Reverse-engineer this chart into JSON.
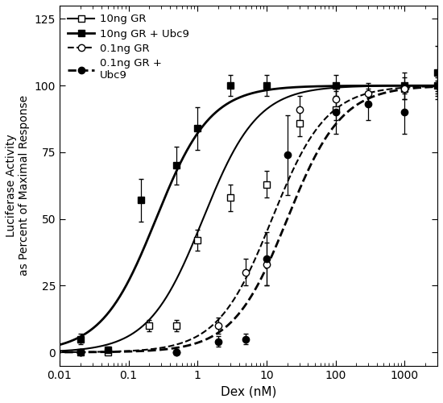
{
  "xlabel": "Dex (nM)",
  "ylabel": "Luciferase Activity\nas Percent of Maximal Response",
  "xlim": [
    0.01,
    3000
  ],
  "ylim": [
    -5,
    130
  ],
  "yticks": [
    0,
    25,
    50,
    75,
    100,
    125
  ],
  "series": [
    {
      "label": "10ng GR",
      "marker": "s",
      "filled": false,
      "linestyle": "-",
      "linewidth": 1.5,
      "markersize": 6,
      "EC50": 1.2,
      "hill": 1.1,
      "top": 100,
      "bottom": 0,
      "x_data": [
        0.02,
        0.05,
        0.2,
        0.5,
        1.0,
        3.0,
        10.0,
        30.0,
        100.0,
        1000.0,
        3000.0
      ],
      "y_data": [
        0,
        0,
        10,
        10,
        42,
        58,
        63,
        86,
        91,
        99,
        100
      ],
      "y_err": [
        0,
        0,
        2,
        2,
        4,
        5,
        5,
        5,
        4,
        2,
        2
      ]
    },
    {
      "label": "10ng GR + Ubc9",
      "marker": "s",
      "filled": true,
      "linestyle": "-",
      "linewidth": 2.0,
      "markersize": 6,
      "EC50": 0.25,
      "hill": 1.1,
      "top": 100,
      "bottom": 0,
      "x_data": [
        0.02,
        0.05,
        0.15,
        0.5,
        1.0,
        3.0,
        10.0,
        100.0,
        1000.0,
        3000.0
      ],
      "y_data": [
        5,
        1,
        57,
        70,
        84,
        100,
        100,
        100,
        100,
        105
      ],
      "y_err": [
        2,
        1,
        8,
        7,
        8,
        4,
        4,
        4,
        5,
        10
      ]
    },
    {
      "label": "0.1ng GR",
      "marker": "o",
      "filled": false,
      "linestyle": "--",
      "linewidth": 1.5,
      "markersize": 6,
      "EC50": 12.0,
      "hill": 1.1,
      "top": 100,
      "bottom": 0,
      "x_data": [
        0.02,
        0.5,
        2.0,
        5.0,
        10.0,
        30.0,
        100.0,
        300.0,
        1000.0,
        3000.0
      ],
      "y_data": [
        0,
        0,
        10,
        30,
        33,
        91,
        95,
        97,
        99,
        100
      ],
      "y_err": [
        0,
        0,
        3,
        5,
        8,
        5,
        4,
        4,
        4,
        3
      ]
    },
    {
      "label": "0.1ng GR +\nUbc9",
      "marker": "o",
      "filled": true,
      "linestyle": "--",
      "linewidth": 2.0,
      "markersize": 6,
      "EC50": 20.0,
      "hill": 1.1,
      "top": 100,
      "bottom": 0,
      "x_data": [
        0.02,
        0.5,
        2.0,
        5.0,
        10.0,
        20.0,
        100.0,
        300.0,
        1000.0,
        3000.0
      ],
      "y_data": [
        0,
        0,
        4,
        5,
        35,
        74,
        90,
        93,
        90,
        100
      ],
      "y_err": [
        0,
        0,
        2,
        2,
        10,
        15,
        8,
        6,
        8,
        4
      ]
    }
  ]
}
